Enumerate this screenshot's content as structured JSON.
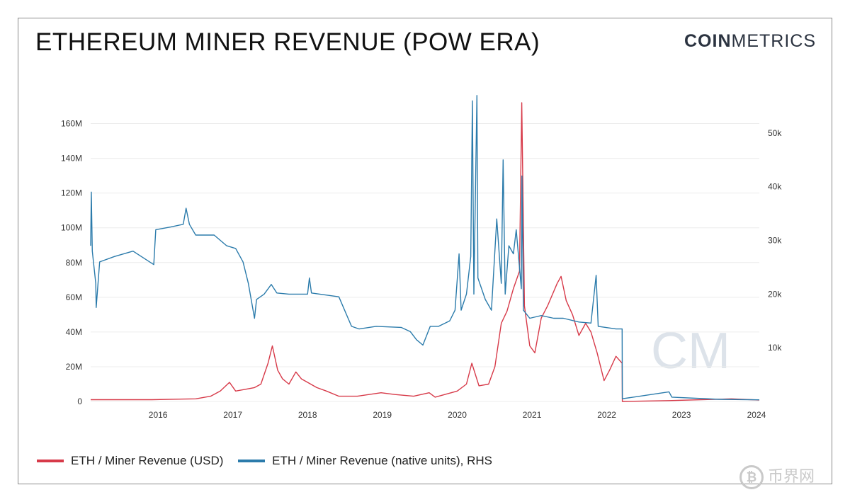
{
  "title": "ETHEREUM MINER REVENUE (POW ERA)",
  "brand": {
    "bold": "COIN",
    "light": "METRICS"
  },
  "watermark": "CM",
  "corner_watermark": {
    "symbol": "₿",
    "text": "币界网"
  },
  "colors": {
    "usd": "#d73a49",
    "native": "#2b7bab",
    "grid": "#ececec",
    "watermark": "#dde3ea"
  },
  "legend": [
    {
      "label": "ETH / Miner Revenue (USD)",
      "color": "#d73a49"
    },
    {
      "label": "ETH / Miner Revenue (native units), RHS",
      "color": "#2b7bab"
    }
  ],
  "chart_data": {
    "type": "line",
    "title": "ETHEREUM MINER REVENUE (POW ERA)",
    "x_ticks": [
      "2016",
      "2017",
      "2018",
      "2019",
      "2020",
      "2021",
      "2022",
      "2023",
      "2024"
    ],
    "xlim": [
      "2015-08-07",
      "2024-07-15"
    ],
    "y_left": {
      "ticks": [
        "0",
        "20M",
        "40M",
        "60M",
        "80M",
        "100M",
        "120M",
        "140M",
        "160M"
      ],
      "range": [
        0,
        170000000
      ]
    },
    "y_right": {
      "ticks": [
        "10k",
        "20k",
        "30k",
        "40k",
        "50k"
      ],
      "range": [
        0,
        55000
      ]
    },
    "grid": true,
    "legend_position": "bottom",
    "series": [
      {
        "name": "ETH / Miner Revenue (USD)",
        "axis": "left",
        "points": [
          [
            "2015-08-07",
            1000000
          ],
          [
            "2016-06-01",
            1000000
          ],
          [
            "2017-01-01",
            1500000
          ],
          [
            "2017-03-15",
            3000000
          ],
          [
            "2017-05-01",
            6000000
          ],
          [
            "2017-06-15",
            11000000
          ],
          [
            "2017-07-15",
            6000000
          ],
          [
            "2017-09-01",
            7000000
          ],
          [
            "2017-10-15",
            8000000
          ],
          [
            "2017-11-15",
            10000000
          ],
          [
            "2017-12-20",
            22000000
          ],
          [
            "2018-01-10",
            32000000
          ],
          [
            "2018-02-05",
            18000000
          ],
          [
            "2018-03-01",
            13000000
          ],
          [
            "2018-04-01",
            10000000
          ],
          [
            "2018-05-05",
            17000000
          ],
          [
            "2018-06-01",
            13000000
          ],
          [
            "2018-07-01",
            11000000
          ],
          [
            "2018-08-15",
            8000000
          ],
          [
            "2018-10-01",
            6000000
          ],
          [
            "2018-12-01",
            3000000
          ],
          [
            "2019-03-01",
            3000000
          ],
          [
            "2019-06-25",
            5000000
          ],
          [
            "2019-09-01",
            4000000
          ],
          [
            "2019-12-01",
            3000000
          ],
          [
            "2020-02-15",
            5000000
          ],
          [
            "2020-03-15",
            2500000
          ],
          [
            "2020-05-01",
            4000000
          ],
          [
            "2020-07-01",
            6000000
          ],
          [
            "2020-08-15",
            10000000
          ],
          [
            "2020-09-10",
            22000000
          ],
          [
            "2020-10-15",
            9000000
          ],
          [
            "2020-12-01",
            10000000
          ],
          [
            "2021-01-01",
            20000000
          ],
          [
            "2021-02-01",
            45000000
          ],
          [
            "2021-03-01",
            52000000
          ],
          [
            "2021-04-01",
            65000000
          ],
          [
            "2021-05-01",
            75000000
          ],
          [
            "2021-05-12",
            172000000
          ],
          [
            "2021-05-25",
            55000000
          ],
          [
            "2021-06-20",
            32000000
          ],
          [
            "2021-07-15",
            28000000
          ],
          [
            "2021-08-15",
            48000000
          ],
          [
            "2021-09-15",
            55000000
          ],
          [
            "2021-11-01",
            68000000
          ],
          [
            "2021-11-20",
            72000000
          ],
          [
            "2021-12-15",
            58000000
          ],
          [
            "2022-01-15",
            50000000
          ],
          [
            "2022-02-15",
            38000000
          ],
          [
            "2022-03-20",
            45000000
          ],
          [
            "2022-04-15",
            40000000
          ],
          [
            "2022-05-15",
            28000000
          ],
          [
            "2022-06-18",
            12000000
          ],
          [
            "2022-07-15",
            18000000
          ],
          [
            "2022-08-15",
            26000000
          ],
          [
            "2022-09-14",
            22000000
          ],
          [
            "2022-09-15",
            0
          ],
          [
            "2023-05-01",
            500000
          ],
          [
            "2024-03-01",
            1500000
          ],
          [
            "2024-07-15",
            800000
          ]
        ]
      },
      {
        "name": "ETH / Miner Revenue (native units), RHS",
        "axis": "right",
        "points": [
          [
            "2015-08-07",
            29000
          ],
          [
            "2015-08-10",
            39000
          ],
          [
            "2015-08-15",
            28000
          ],
          [
            "2015-09-01",
            22000
          ],
          [
            "2015-09-03",
            17500
          ],
          [
            "2015-09-20",
            26000
          ],
          [
            "2015-12-01",
            27000
          ],
          [
            "2016-03-01",
            28000
          ],
          [
            "2016-06-10",
            25500
          ],
          [
            "2016-06-20",
            32000
          ],
          [
            "2016-09-01",
            32500
          ],
          [
            "2016-11-01",
            33000
          ],
          [
            "2016-11-15",
            36000
          ],
          [
            "2016-12-01",
            33000
          ],
          [
            "2017-01-01",
            31000
          ],
          [
            "2017-04-01",
            31000
          ],
          [
            "2017-06-01",
            29000
          ],
          [
            "2017-07-15",
            28500
          ],
          [
            "2017-08-20",
            26000
          ],
          [
            "2017-09-15",
            22000
          ],
          [
            "2017-10-15",
            15500
          ],
          [
            "2017-10-25",
            19000
          ],
          [
            "2017-12-01",
            20000
          ],
          [
            "2018-01-05",
            21800
          ],
          [
            "2018-02-01",
            20200
          ],
          [
            "2018-04-01",
            20000
          ],
          [
            "2018-07-01",
            20000
          ],
          [
            "2018-07-10",
            23000
          ],
          [
            "2018-07-20",
            20200
          ],
          [
            "2018-12-01",
            19500
          ],
          [
            "2019-01-15",
            15500
          ],
          [
            "2019-02-01",
            14000
          ],
          [
            "2019-03-10",
            13500
          ],
          [
            "2019-06-01",
            14000
          ],
          [
            "2019-10-01",
            13800
          ],
          [
            "2019-11-15",
            13000
          ],
          [
            "2019-12-15",
            11500
          ],
          [
            "2020-01-15",
            10500
          ],
          [
            "2020-02-20",
            14000
          ],
          [
            "2020-04-01",
            14000
          ],
          [
            "2020-05-25",
            15000
          ],
          [
            "2020-06-20",
            17000
          ],
          [
            "2020-07-10",
            27500
          ],
          [
            "2020-07-20",
            17000
          ],
          [
            "2020-08-15",
            20000
          ],
          [
            "2020-09-05",
            27000
          ],
          [
            "2020-09-13",
            56000
          ],
          [
            "2020-09-20",
            20000
          ],
          [
            "2020-10-05",
            57000
          ],
          [
            "2020-10-10",
            23000
          ],
          [
            "2020-11-15",
            19000
          ],
          [
            "2020-12-15",
            17000
          ],
          [
            "2021-01-10",
            34000
          ],
          [
            "2021-02-01",
            22000
          ],
          [
            "2021-02-10",
            45000
          ],
          [
            "2021-02-20",
            20000
          ],
          [
            "2021-03-10",
            29000
          ],
          [
            "2021-04-01",
            27500
          ],
          [
            "2021-04-15",
            32000
          ],
          [
            "2021-05-10",
            21000
          ],
          [
            "2021-05-13",
            42000
          ],
          [
            "2021-05-20",
            17000
          ],
          [
            "2021-06-20",
            15500
          ],
          [
            "2021-08-15",
            16000
          ],
          [
            "2021-10-15",
            15500
          ],
          [
            "2021-12-01",
            15500
          ],
          [
            "2022-02-15",
            14800
          ],
          [
            "2022-04-15",
            14600
          ],
          [
            "2022-05-10",
            23500
          ],
          [
            "2022-05-20",
            14000
          ],
          [
            "2022-08-15",
            13500
          ],
          [
            "2022-09-14",
            13500
          ],
          [
            "2022-09-15",
            500
          ],
          [
            "2023-05-01",
            1800
          ],
          [
            "2023-05-15",
            800
          ],
          [
            "2024-01-01",
            400
          ],
          [
            "2024-07-15",
            300
          ]
        ]
      }
    ]
  }
}
